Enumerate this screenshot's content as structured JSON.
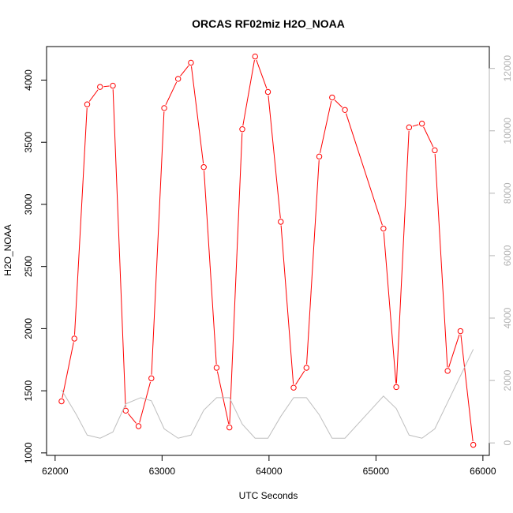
{
  "chart_data": {
    "type": "line",
    "title": "ORCAS RF02miz H2O_NOAA",
    "xlabel": "UTC Seconds",
    "ylabel": "H2O_NOAA",
    "xlim": [
      61920,
      66060
    ],
    "ylim": [
      980,
      4270
    ],
    "y2lim": [
      -400,
      12700
    ],
    "x_ticks": [
      62000,
      63000,
      64000,
      65000,
      66000
    ],
    "y_ticks": [
      1000,
      1500,
      2000,
      2500,
      3000,
      3500,
      4000
    ],
    "y2_ticks": [
      0,
      2000,
      4000,
      6000,
      8000,
      10000,
      12000
    ],
    "series": [
      {
        "axis": "left",
        "color": "#ff0000",
        "marker": "open-circle",
        "x": [
          62060,
          62180,
          62300,
          62420,
          62540,
          62660,
          62780,
          62900,
          63020,
          63150,
          63270,
          63390,
          63510,
          63630,
          63750,
          63870,
          63990,
          64110,
          64230,
          64350,
          64470,
          64590,
          64710,
          65070,
          65190,
          65310,
          65430,
          65550,
          65670,
          65790,
          65910
        ],
        "values": [
          1415,
          1920,
          3805,
          3945,
          3955,
          1340,
          1215,
          1600,
          3775,
          4010,
          4140,
          3300,
          1685,
          1205,
          3605,
          4190,
          3905,
          2860,
          1525,
          1685,
          3385,
          3860,
          3760,
          2805,
          1530,
          3620,
          3650,
          3435,
          1660,
          1980,
          1065
        ]
      },
      {
        "axis": "right",
        "color": "#bebebe",
        "marker": "none",
        "x": [
          62060,
          62200,
          62300,
          62420,
          62540,
          62660,
          62800,
          62900,
          63020,
          63150,
          63270,
          63390,
          63510,
          63630,
          63750,
          63870,
          63990,
          64110,
          64230,
          64350,
          64470,
          64590,
          64710,
          64950,
          65070,
          65190,
          65310,
          65430,
          65550,
          65910
        ],
        "values": [
          1700,
          900,
          250,
          150,
          350,
          1250,
          1450,
          1350,
          450,
          150,
          250,
          1050,
          1450,
          1450,
          600,
          150,
          150,
          850,
          1450,
          1450,
          900,
          150,
          150,
          1050,
          1500,
          1100,
          250,
          150,
          450,
          3000
        ]
      }
    ]
  }
}
